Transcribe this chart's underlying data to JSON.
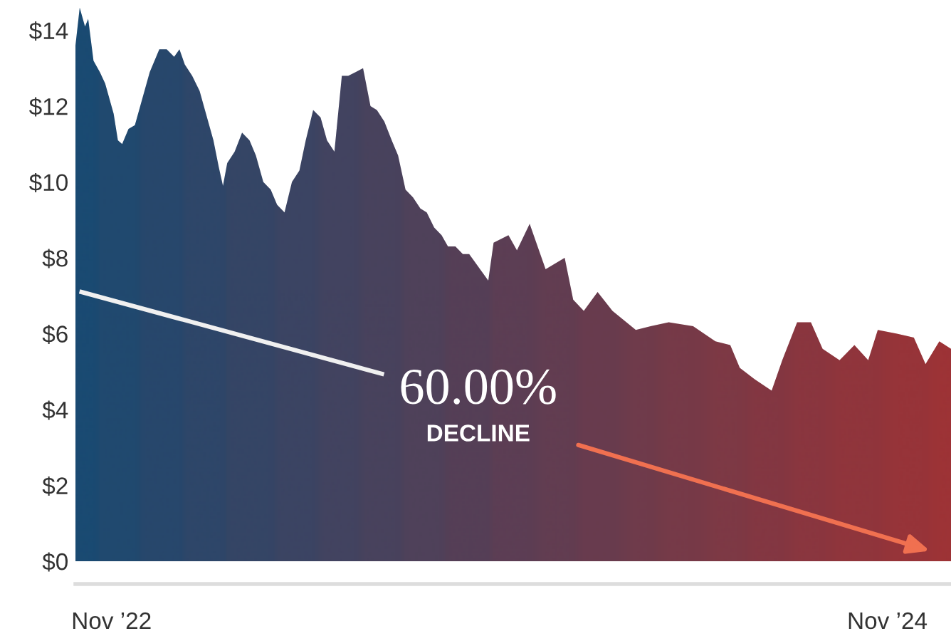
{
  "chart_data": {
    "type": "area",
    "x": [
      "2022-10-12",
      "2022-10-16",
      "2022-10-21",
      "2022-10-24",
      "2022-10-29",
      "2022-11-04",
      "2022-11-09",
      "2022-11-17",
      "2022-11-21",
      "2022-11-25",
      "2022-12-01",
      "2022-12-07",
      "2022-12-14",
      "2022-12-21",
      "2022-12-30",
      "2023-01-06",
      "2023-01-13",
      "2023-01-18",
      "2023-01-23",
      "2023-01-30",
      "2023-02-06",
      "2023-02-12",
      "2023-02-19",
      "2023-02-24",
      "2023-02-28",
      "2023-03-04",
      "2023-03-11",
      "2023-03-18",
      "2023-03-25",
      "2023-03-31",
      "2023-04-07",
      "2023-04-14",
      "2023-04-20",
      "2023-04-27",
      "2023-05-04",
      "2023-05-11",
      "2023-05-17",
      "2023-05-24",
      "2023-05-31",
      "2023-06-06",
      "2023-06-13",
      "2023-06-20",
      "2023-06-26",
      "2023-07-03",
      "2023-07-10",
      "2023-07-17",
      "2023-07-23",
      "2023-07-30",
      "2023-08-06",
      "2023-08-12",
      "2023-08-19",
      "2023-08-26",
      "2023-09-02",
      "2023-09-08",
      "2023-09-15",
      "2023-09-22",
      "2023-09-28",
      "2023-10-05",
      "2023-10-12",
      "2023-10-18",
      "2023-11-05",
      "2023-11-10",
      "2023-11-24",
      "2023-12-02",
      "2023-12-14",
      "2023-12-29",
      "2024-01-16",
      "2024-01-24",
      "2024-02-03",
      "2024-02-16",
      "2024-03-01",
      "2024-03-23",
      "2024-04-06",
      "2024-04-23",
      "2024-05-16",
      "2024-06-06",
      "2024-06-20",
      "2024-06-29",
      "2024-07-13",
      "2024-07-29",
      "2024-08-08",
      "2024-08-22",
      "2024-09-04",
      "2024-09-15",
      "2024-10-01",
      "2024-10-15",
      "2024-10-28",
      "2024-11-06",
      "2024-11-24",
      "2024-12-10",
      "2024-12-21",
      "2025-01-03",
      "2025-01-14"
    ],
    "series": [
      {
        "colors": [
          "#1b4a72",
          "#1b4a72",
          "#1b4a72",
          "#1b4a72",
          "#1b4a72",
          "#22496f",
          "#22496f",
          "#22496f",
          "#22496f",
          "#22496f",
          "#22496f",
          "#22496f",
          "#2a476b",
          "#2a476b",
          "#2a476b",
          "#2a476b",
          "#2a476b",
          "#2a476b",
          "#314668",
          "#314668",
          "#314668",
          "#314668",
          "#314668",
          "#314668",
          "#314668",
          "#394564",
          "#394564",
          "#394564",
          "#394564",
          "#394564",
          "#394564",
          "#394564",
          "#404461",
          "#404461",
          "#404461",
          "#404461",
          "#404461",
          "#404461",
          "#48425e",
          "#48425e",
          "#48425e",
          "#48425e",
          "#48425e",
          "#48425e",
          "#4f415a",
          "#4f415a",
          "#4f415a",
          "#4f415a",
          "#4f415a",
          "#4f415a",
          "#574057",
          "#574057",
          "#574057",
          "#574057",
          "#574057",
          "#574057",
          "#5e3e53",
          "#5e3e53",
          "#5e3e53",
          "#5e3e53",
          "#5e3e53",
          "#663d50",
          "#663d50",
          "#663d50",
          "#663d50",
          "#6d3c4d",
          "#6d3c4d",
          "#6d3c4d",
          "#743a49",
          "#743a49",
          "#743a49",
          "#7c3946",
          "#7c3946",
          "#833842",
          "#833842",
          "#8b373f",
          "#8b373f",
          "#8b373f",
          "#92353c",
          "#92353c",
          "#92353c",
          "#9a3438",
          "#9a3438",
          "#9a3438",
          "#a13335",
          "#a13335",
          "#a13335",
          "#a13335",
          "#a93131",
          "#a93131",
          "#a93131",
          "#b0302e",
          "#b0302e"
        ],
        "values": [
          13.6,
          14.6,
          14.1,
          14.3,
          13.2,
          12.9,
          12.6,
          11.8,
          11.1,
          11.0,
          11.4,
          11.5,
          12.2,
          12.9,
          13.5,
          13.5,
          13.3,
          13.5,
          13.1,
          12.8,
          12.4,
          11.8,
          11.1,
          10.4,
          9.9,
          10.5,
          10.8,
          11.3,
          11.1,
          10.7,
          10.0,
          9.8,
          9.4,
          9.2,
          10.0,
          10.3,
          11.1,
          11.9,
          11.7,
          11.1,
          10.8,
          12.8,
          12.8,
          12.9,
          13.0,
          12.0,
          11.9,
          11.6,
          11.1,
          10.7,
          9.8,
          9.6,
          9.3,
          9.2,
          8.8,
          8.6,
          8.3,
          8.3,
          8.1,
          8.1,
          7.4,
          8.4,
          8.6,
          8.2,
          8.9,
          7.7,
          8.0,
          6.9,
          6.6,
          7.1,
          6.6,
          6.1,
          6.2,
          6.3,
          6.2,
          5.8,
          5.7,
          5.1,
          4.8,
          4.5,
          5.3,
          6.3,
          6.3,
          5.6,
          5.3,
          5.7,
          5.3,
          6.1,
          6.0,
          5.9,
          5.2,
          5.8,
          5.6
        ]
      }
    ],
    "xlim": [
      "2022-10-12",
      "2025-01-14"
    ],
    "xticks": [
      {
        "value": "2022-11-15",
        "label": "Nov ’22"
      },
      {
        "value": "2024-11-15",
        "label": "Nov ’24"
      }
    ],
    "ylim": [
      -0.6,
      14.8
    ],
    "yticks": [
      {
        "value": 0,
        "label": "$0"
      },
      {
        "value": 2,
        "label": "$2"
      },
      {
        "value": 4,
        "label": "$4"
      },
      {
        "value": 6,
        "label": "$6"
      },
      {
        "value": 8,
        "label": "$8"
      },
      {
        "value": 10,
        "label": "$10"
      },
      {
        "value": 12,
        "label": "$12"
      },
      {
        "value": 14,
        "label": "$14"
      }
    ],
    "annotations": [
      "60.00%",
      "DECLINE"
    ],
    "grid": false,
    "legend": false
  }
}
